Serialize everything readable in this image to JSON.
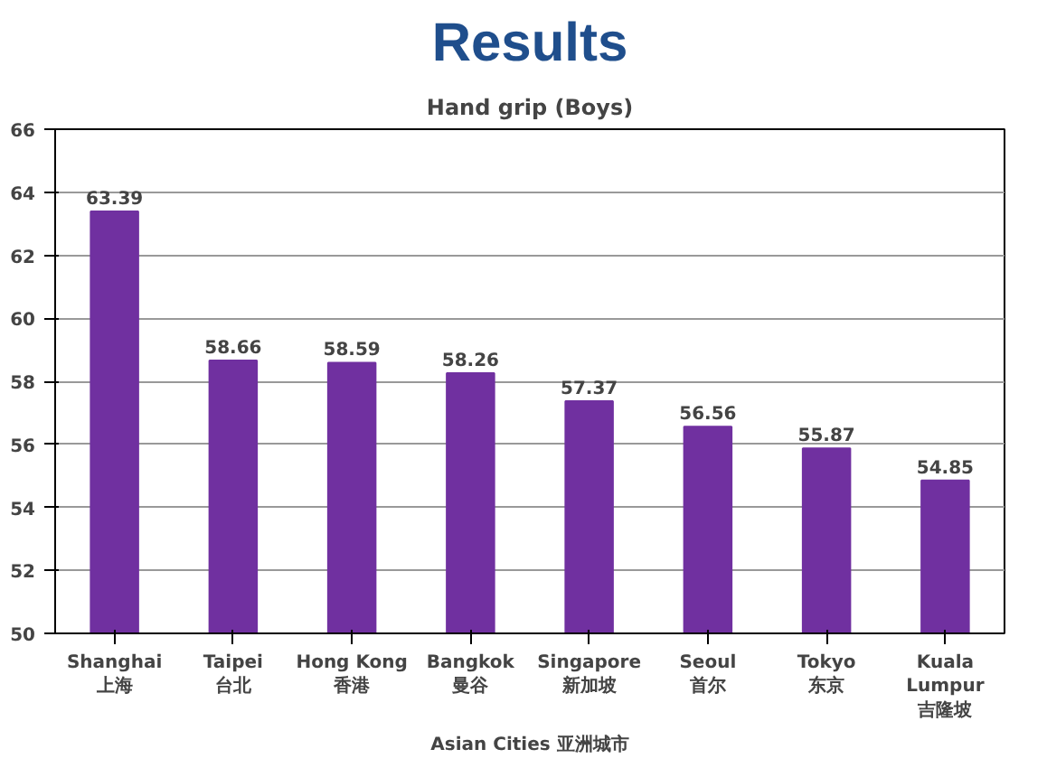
{
  "chart_data": {
    "type": "bar",
    "title": "Results",
    "subtitle": "Hand grip (Boys)",
    "xlabel": "Asian Cities 亚洲城市",
    "categories": [
      "Shanghai\n上海",
      "Taipei\n台北",
      "Hong Kong\n香港",
      "Bangkok\n曼谷",
      "Singapore\n新加坡",
      "Seoul\n首尔",
      "Tokyo\n东京",
      "Kuala\nLumpur\n吉隆坡"
    ],
    "values": [
      63.39,
      58.66,
      58.59,
      58.26,
      57.37,
      56.56,
      55.87,
      54.85
    ],
    "color": "#7030a0",
    "ylim": [
      50,
      66
    ],
    "yticks": [
      50,
      52,
      54,
      56,
      58,
      60,
      62,
      64,
      66
    ],
    "grid": "y",
    "data_labels": true
  }
}
